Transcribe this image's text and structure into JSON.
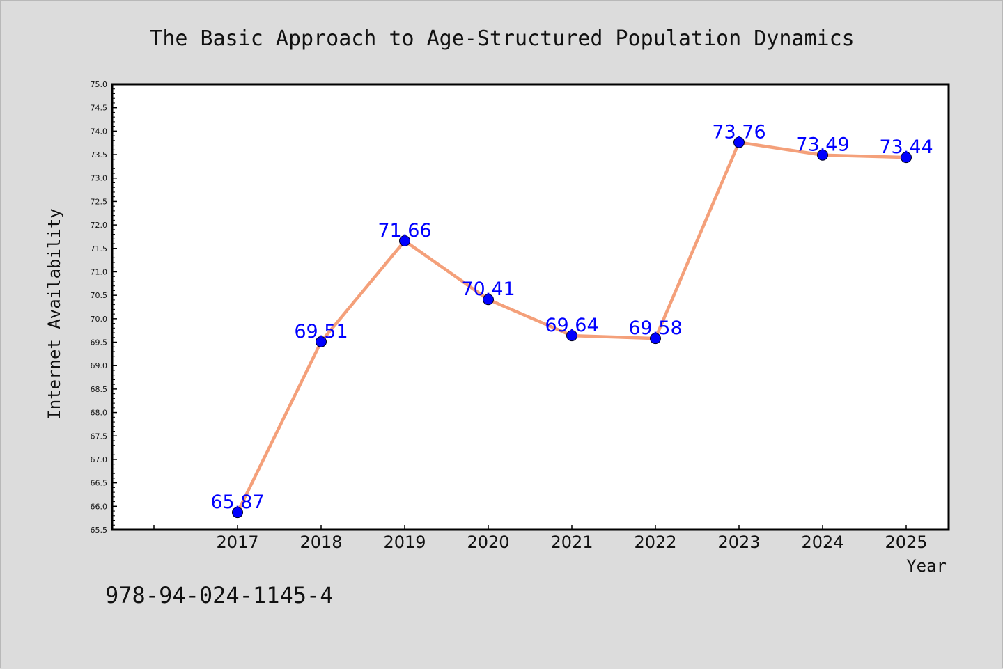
{
  "chart_data": {
    "type": "line",
    "title": "The Basic Approach to Age-Structured Population Dynamics",
    "xlabel": "Year",
    "ylabel": "Internet Availability",
    "categories": [
      "2017",
      "2018",
      "2019",
      "2020",
      "2021",
      "2022",
      "2023",
      "2024",
      "2025"
    ],
    "values": [
      65.87,
      69.51,
      71.66,
      70.41,
      69.64,
      69.58,
      73.76,
      73.49,
      73.44
    ],
    "data_labels": [
      "65.87",
      "69.51",
      "71.66",
      "70.41",
      "69.64",
      "69.58",
      "73.76",
      "73.49",
      "73.44"
    ],
    "ylim": [
      65.5,
      75.0
    ],
    "ytick_step": 0.5,
    "ytick_labels": [
      "65.5",
      "66.0",
      "66.5",
      "67.0",
      "67.5",
      "68.0",
      "68.5",
      "69.0",
      "69.5",
      "70.0",
      "70.5",
      "71.0",
      "71.5",
      "72.0",
      "72.5",
      "73.0",
      "73.5",
      "74.0",
      "74.5",
      "75.0"
    ],
    "grid": false,
    "legend": "none",
    "line_color": "#f4a07a",
    "marker_color": "#0000ff",
    "label_color": "#0000ff"
  },
  "footer": {
    "isbn": "978-94-024-1145-4"
  }
}
